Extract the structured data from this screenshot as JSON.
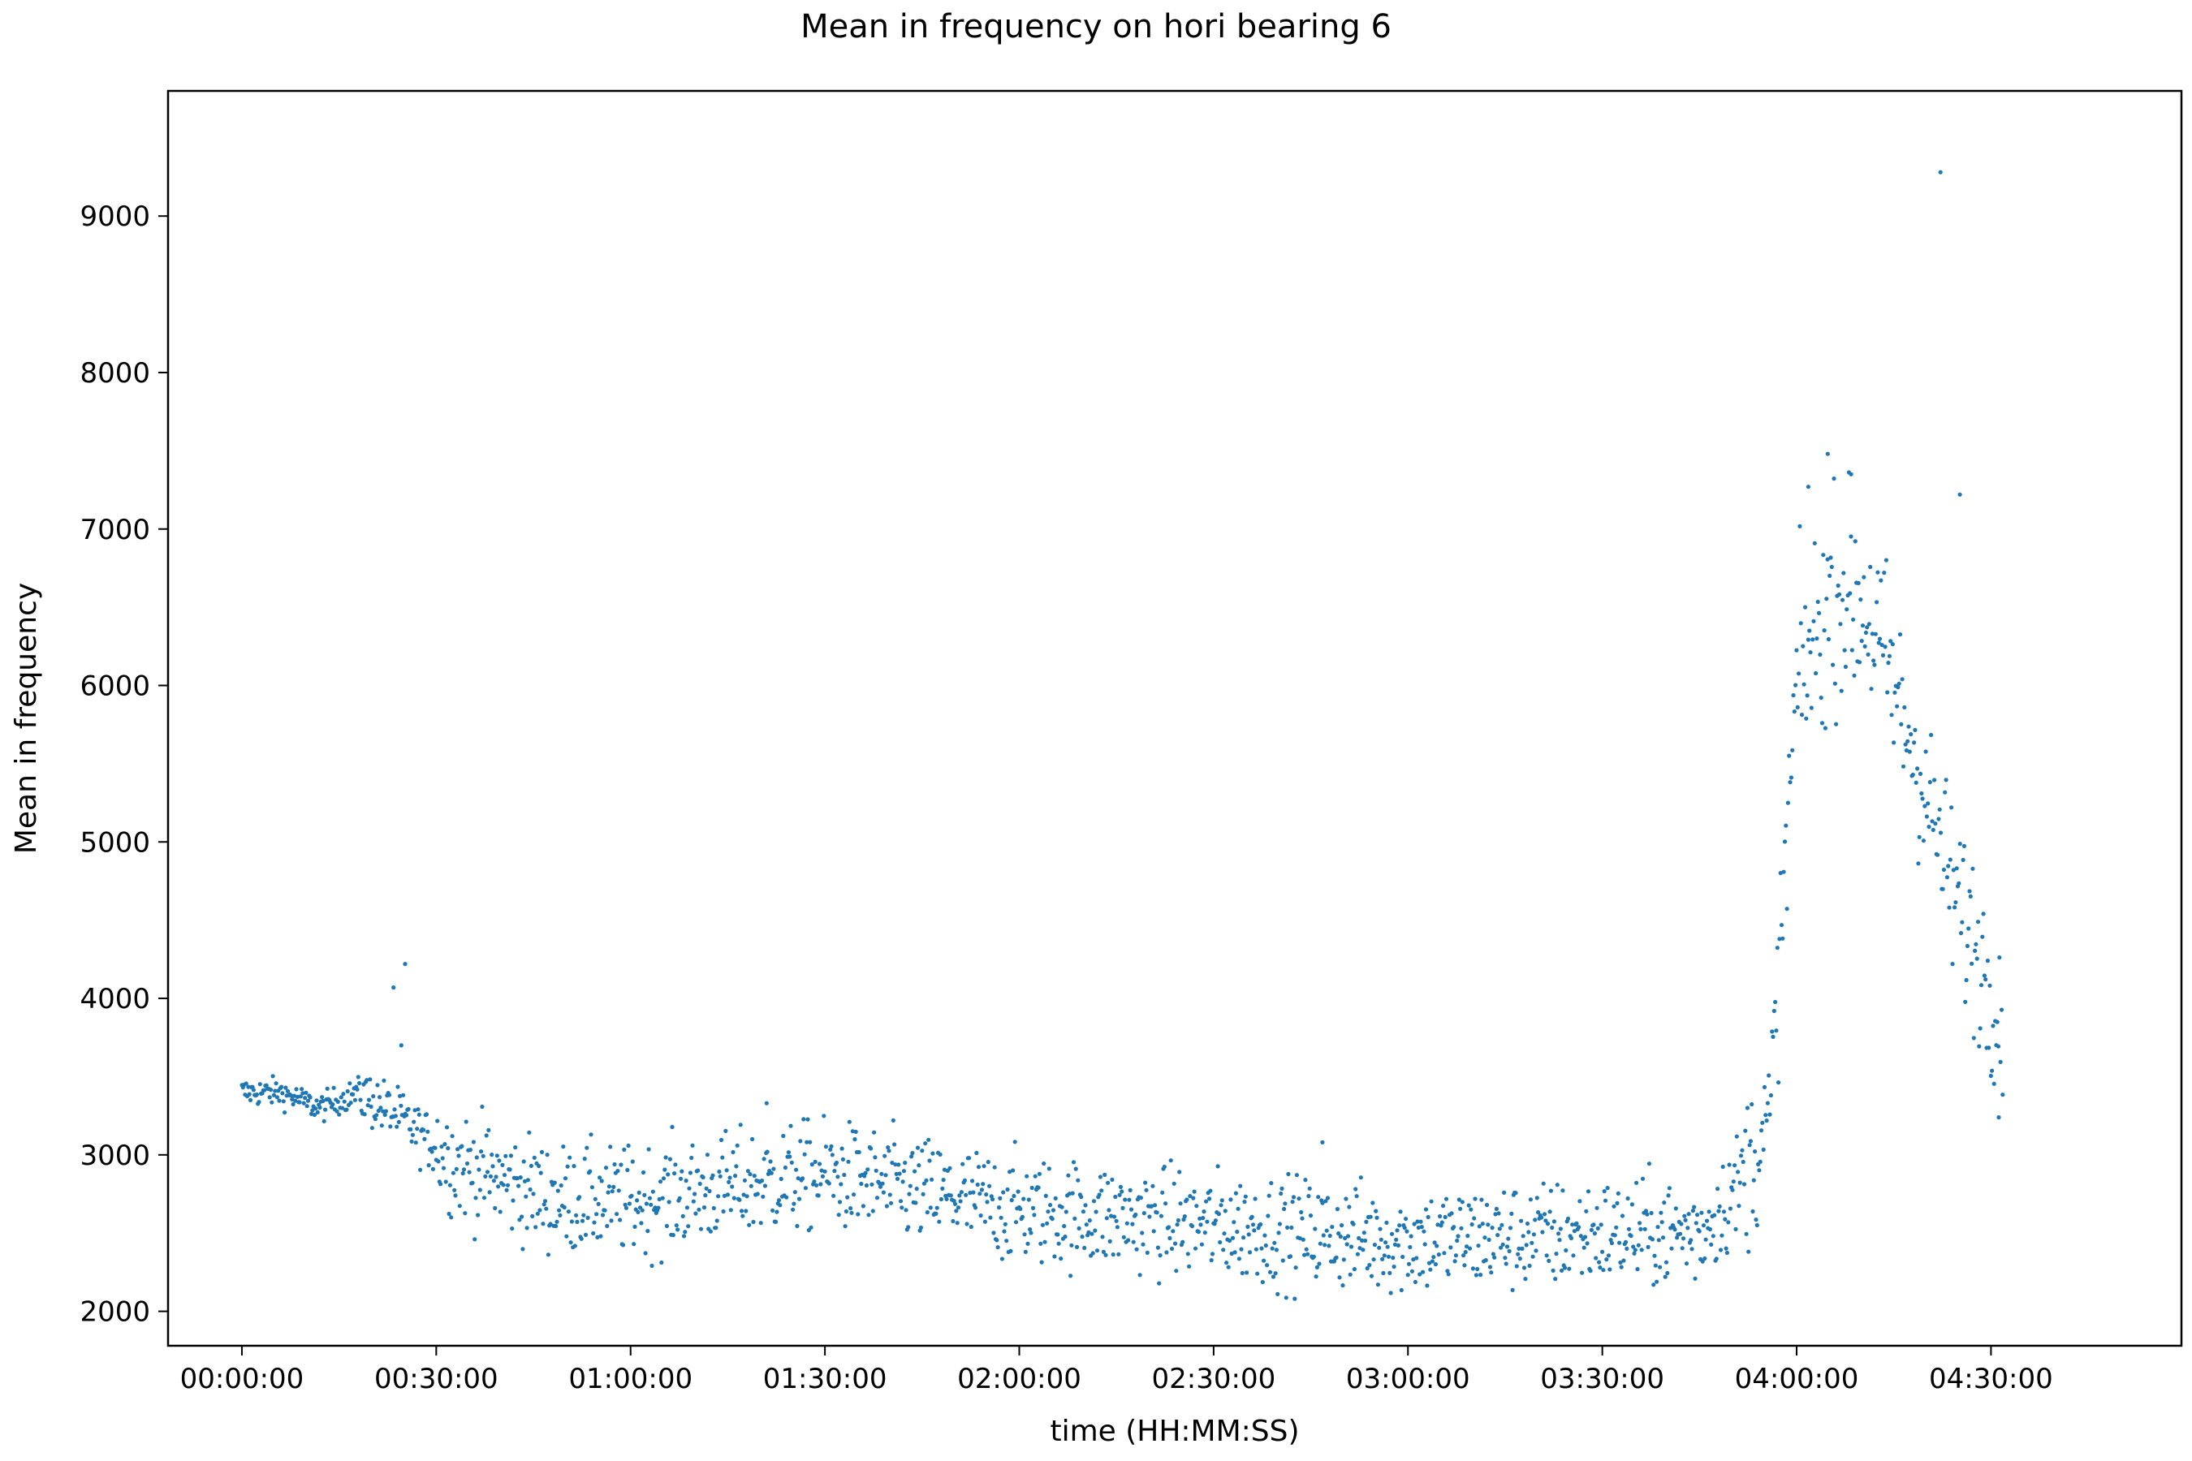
{
  "chart_data": {
    "type": "scatter",
    "title": "Mean in frequency on hori bearing 6",
    "xlabel": "time (HH:MM:SS)",
    "ylabel": "Mean in frequency",
    "x_unit": "hours",
    "xlim": [
      -0.19,
      4.99
    ],
    "ylim": [
      1780,
      9800
    ],
    "x_ticks": [
      0,
      0.5,
      1.0,
      1.5,
      2.0,
      2.5,
      3.0,
      3.5,
      4.0,
      4.5
    ],
    "x_tick_labels": [
      "00:00:00",
      "00:30:00",
      "01:00:00",
      "01:30:00",
      "02:00:00",
      "02:30:00",
      "03:00:00",
      "03:30:00",
      "04:00:00",
      "04:30:00"
    ],
    "y_ticks": [
      2000,
      3000,
      4000,
      5000,
      6000,
      7000,
      8000,
      9000
    ],
    "y_tick_labels": [
      "2000",
      "3000",
      "4000",
      "5000",
      "6000",
      "7000",
      "8000",
      "9000"
    ],
    "grid": false,
    "marker_color": "#1f77b4",
    "series_trend": [
      {
        "x": 0.0,
        "y": 3400
      },
      {
        "x": 0.1,
        "y": 3400
      },
      {
        "x": 0.2,
        "y": 3300
      },
      {
        "x": 0.3,
        "y": 3400
      },
      {
        "x": 0.4,
        "y": 3250
      },
      {
        "x": 0.55,
        "y": 2950
      },
      {
        "x": 0.8,
        "y": 2720
      },
      {
        "x": 1.0,
        "y": 2700
      },
      {
        "x": 1.5,
        "y": 2880
      },
      {
        "x": 2.0,
        "y": 2650
      },
      {
        "x": 2.5,
        "y": 2550
      },
      {
        "x": 3.0,
        "y": 2450
      },
      {
        "x": 3.5,
        "y": 2500
      },
      {
        "x": 3.75,
        "y": 2500
      },
      {
        "x": 3.85,
        "y": 2800
      },
      {
        "x": 3.93,
        "y": 3200
      },
      {
        "x": 4.0,
        "y": 6000
      },
      {
        "x": 4.1,
        "y": 6600
      },
      {
        "x": 4.18,
        "y": 6500
      },
      {
        "x": 4.3,
        "y": 5600
      },
      {
        "x": 4.4,
        "y": 4700
      },
      {
        "x": 4.53,
        "y": 3900
      }
    ],
    "outliers": [
      {
        "x": 0.39,
        "y": 4070
      },
      {
        "x": 0.42,
        "y": 4220
      },
      {
        "x": 0.41,
        "y": 3700
      },
      {
        "x": 1.35,
        "y": 3330
      },
      {
        "x": 2.78,
        "y": 3080
      },
      {
        "x": 4.03,
        "y": 7270
      },
      {
        "x": 4.08,
        "y": 7480
      },
      {
        "x": 4.14,
        "y": 7350
      },
      {
        "x": 4.37,
        "y": 9280
      },
      {
        "x": 4.42,
        "y": 7220
      },
      {
        "x": 4.52,
        "y": 3240
      }
    ]
  }
}
